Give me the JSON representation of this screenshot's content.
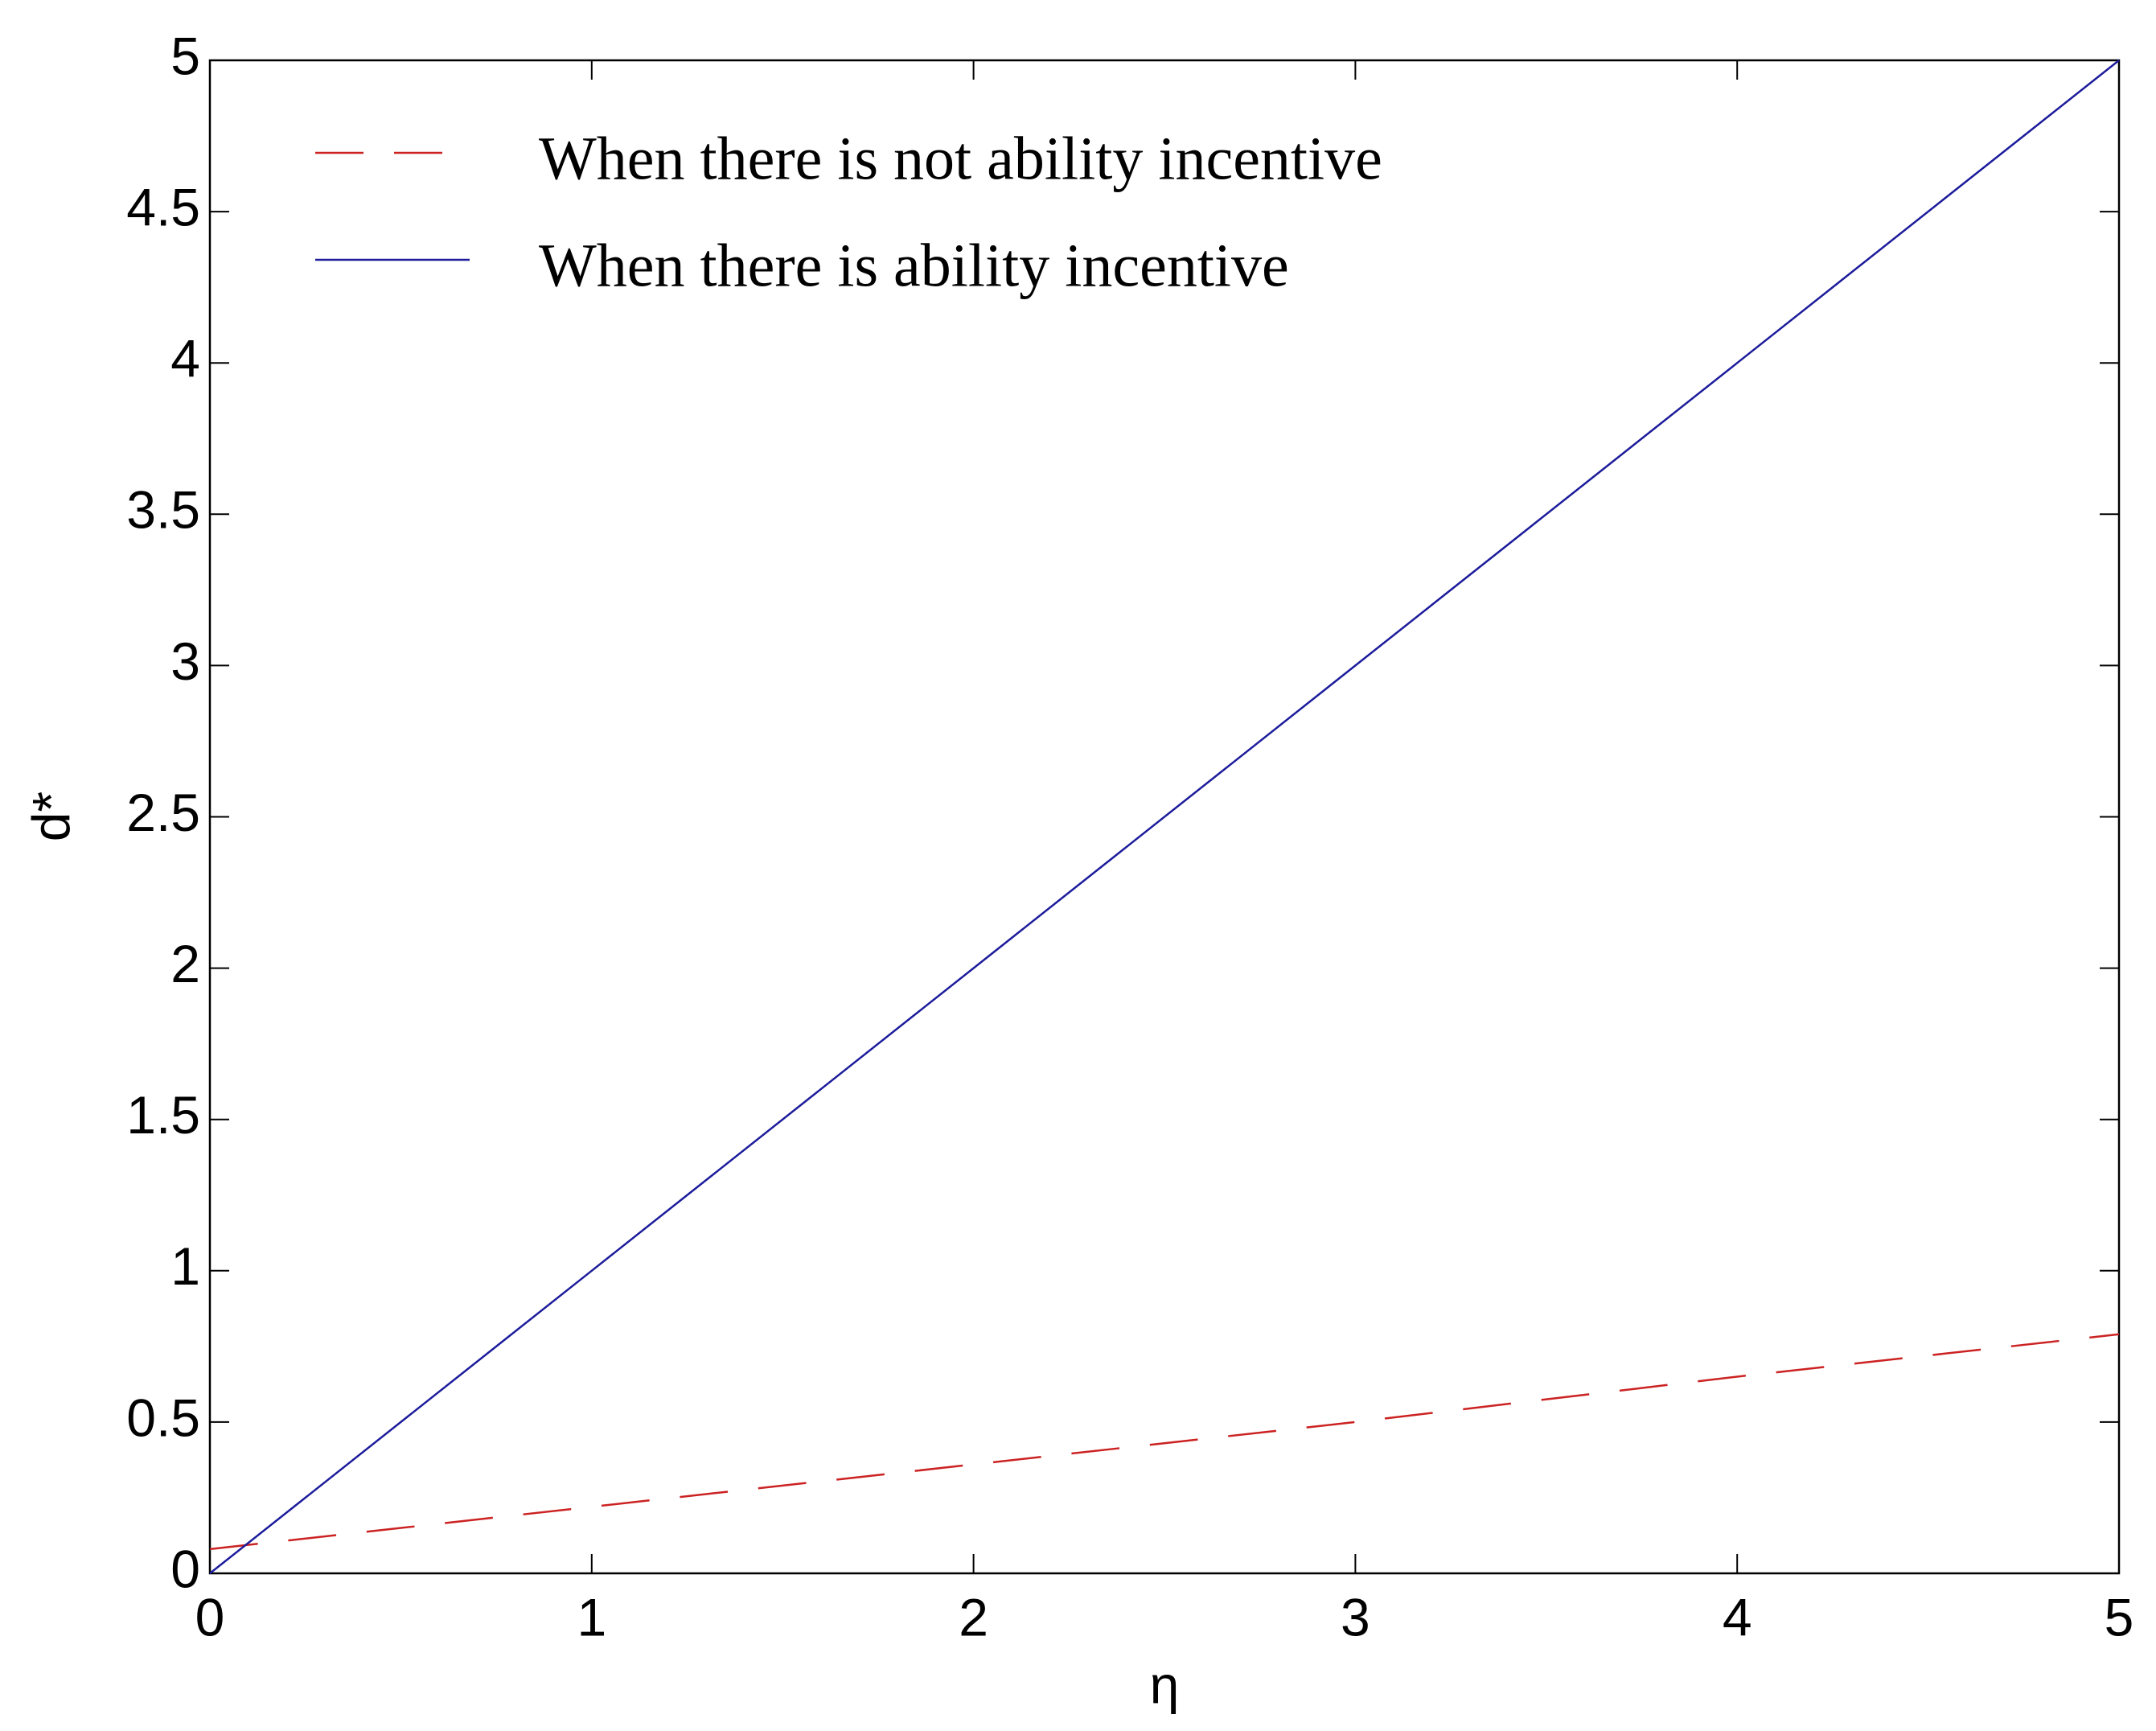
{
  "chart_data": {
    "type": "line",
    "x_label": "η",
    "y_label": "d*",
    "x": [
      0,
      1,
      2,
      3,
      4,
      5
    ],
    "series": [
      {
        "name": "When there is not ability incentive",
        "color": "#cc2222",
        "line_style": "dashed",
        "values": [
          0.08,
          0.22,
          0.36,
          0.5,
          0.65,
          0.79
        ]
      },
      {
        "name": "When there is ability incentive",
        "color": "#1c1c9c",
        "line_style": "solid",
        "values": [
          0,
          1,
          2,
          3,
          4,
          5
        ]
      }
    ],
    "xlim": [
      0,
      5
    ],
    "xticks": [
      0,
      1,
      2,
      3,
      4,
      5
    ],
    "ylim": [
      0,
      5
    ],
    "yticks": [
      0,
      0.5,
      1,
      1.5,
      2,
      2.5,
      3,
      3.5,
      4,
      4.5,
      5
    ],
    "grid": false,
    "legend": "upper-left"
  }
}
